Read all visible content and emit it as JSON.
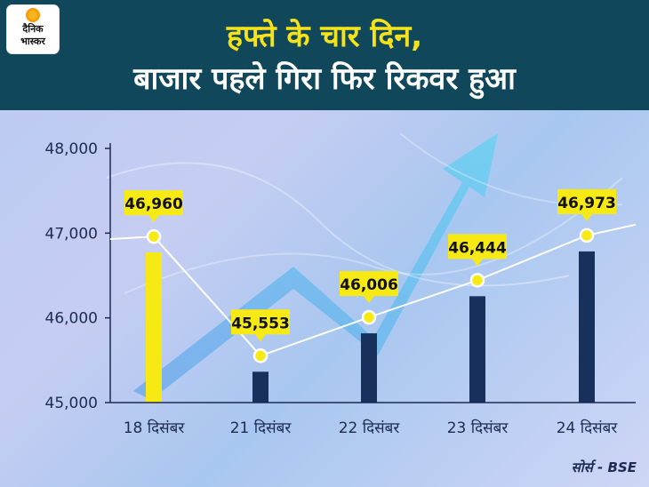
{
  "header": {
    "title_line1": "हफ्ते के चार दिन,",
    "title_line2": "बाजार पहले गिरा फिर रिकवर हुआ"
  },
  "logo": {
    "line1": "दैनिक",
    "line2": "भास्कर"
  },
  "source": "सोर्स - BSE",
  "colors": {
    "header_bg": "#10475a",
    "title_highlight": "#f5e21a",
    "bar_highlight": "#f7ea14",
    "bar_default": "#17305c",
    "line": "#ffffff",
    "label_bg": "#f7ea14"
  },
  "chart_data": {
    "type": "bar",
    "title": "",
    "xlabel": "",
    "ylabel": "",
    "categories": [
      "18 दिसंबर",
      "21 दिसंबर",
      "22 दिसंबर",
      "23 दिसंबर",
      "24 दिसंबर"
    ],
    "values": [
      46960,
      45553,
      46006,
      46444,
      46973
    ],
    "value_labels": [
      "46,960",
      "45,553",
      "46,006",
      "46,444",
      "46,973"
    ],
    "highlight_index": 0,
    "overlay_line": true,
    "ylim": [
      45000,
      48000
    ],
    "yticks": [
      45000,
      46000,
      47000,
      48000
    ],
    "ytick_labels": [
      "45,000",
      "46,000",
      "47,000",
      "48,000"
    ],
    "grid": false
  }
}
